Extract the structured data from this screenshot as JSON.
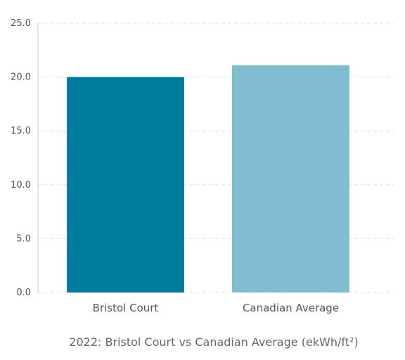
{
  "chart_data": {
    "type": "bar",
    "title": "",
    "caption": "2022: Bristol Court vs Canadian Average (ekWh/ft²)",
    "xlabel": "",
    "ylabel": "",
    "categories": [
      "Bristol Court",
      "Canadian Average"
    ],
    "values": [
      20.0,
      21.1
    ],
    "colors": [
      "#007c9e",
      "#80bdd1"
    ],
    "ylim": [
      0,
      25
    ],
    "yticks": [
      "0.0",
      "5.0",
      "10.0",
      "15.0",
      "20.0",
      "25.0"
    ],
    "grid": true,
    "legend": "none"
  }
}
